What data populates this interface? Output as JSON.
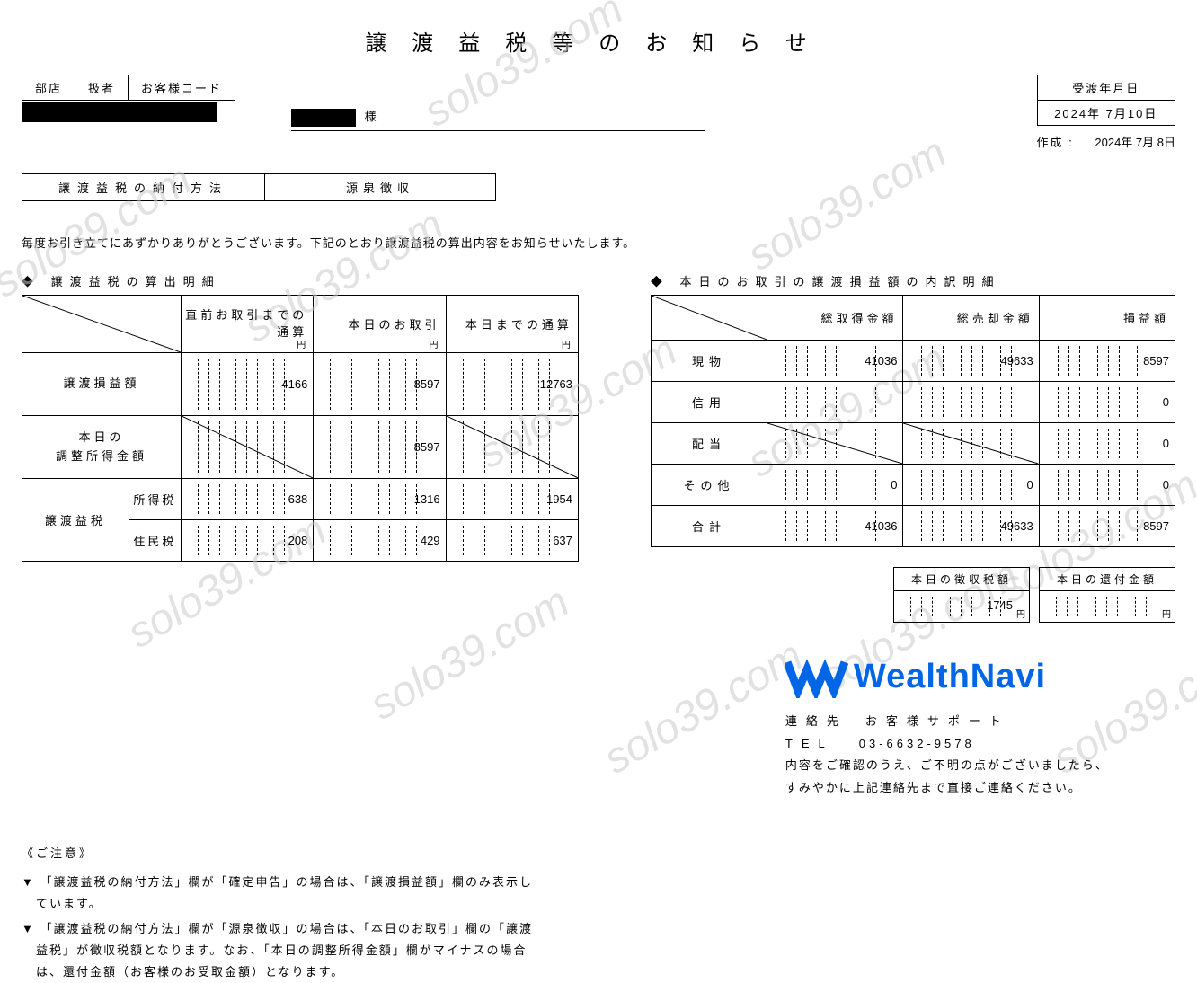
{
  "watermark_text": "solo39.com",
  "title": "譲渡益税等のお知らせ",
  "customer_header": {
    "c1": "部店",
    "c2": "扱者",
    "c3": "お客様コード"
  },
  "sama": "様",
  "dates": {
    "delivery_label": "受渡年月日",
    "delivery": "2024年 7月10日",
    "created_label": "作成",
    "created": "2024年 7月 8日"
  },
  "method": {
    "label": "譲渡益税の納付方法",
    "value": "源泉徴収"
  },
  "intro": "毎度お引き立てにあずかりありがとうございます。下記のとおり譲渡益税の算出内容をお知らせいたします。",
  "tax_calc": {
    "title": "譲渡益税の算出明細",
    "cols": [
      "直前お取引までの通算",
      "本日のお取引",
      "本日までの通算"
    ],
    "yen": "円",
    "rows": [
      {
        "label": "譲渡損益額",
        "vals": [
          "4166",
          "8597",
          "12763"
        ],
        "diag": [
          false,
          false,
          false
        ]
      },
      {
        "label": "本日の\n調整所得金額",
        "vals": [
          "",
          "8597",
          ""
        ],
        "diag": [
          true,
          false,
          true
        ]
      }
    ],
    "split_label": "譲渡益税",
    "split_rows": [
      {
        "sub": "所得税",
        "vals": [
          "638",
          "1316",
          "1954"
        ]
      },
      {
        "sub": "住民税",
        "vals": [
          "208",
          "429",
          "637"
        ]
      }
    ]
  },
  "breakdown": {
    "title": "本日のお取引の譲渡損益額の内訳明細",
    "cols": [
      "総取得金額",
      "総売却金額",
      "損益額"
    ],
    "rows": [
      {
        "label": "現物",
        "vals": [
          "41036",
          "49633",
          "8597"
        ]
      },
      {
        "label": "信用",
        "vals": [
          "",
          "",
          "0"
        ]
      },
      {
        "label": "配当",
        "vals": [
          "",
          "",
          "0"
        ],
        "diag_cols": [
          0,
          1
        ]
      },
      {
        "label": "その他",
        "vals": [
          "0",
          "0",
          "0"
        ]
      },
      {
        "label": "合計",
        "vals": [
          "41036",
          "49633",
          "8597"
        ]
      }
    ]
  },
  "summary": {
    "collected_label": "本日の徴収税額",
    "collected": "1745",
    "yen": "円",
    "refund_label": "本日の還付金額",
    "refund": ""
  },
  "notes": {
    "header": "《ご注意》",
    "n1": "▼ 「譲渡益税の納付方法」欄が「確定申告」の場合は、「譲渡損益額」欄のみ表示しています。",
    "n2": "▼ 「譲渡益税の納付方法」欄が「源泉徴収」の場合は、「本日のお取引」欄の「譲渡益税」が徴収税額となります。なお、「本日の調整所得金額」欄がマイナスの場合は、還付金額（お客様のお受取金額）となります。"
  },
  "brand": {
    "name": "WealthNavi",
    "contact_label": "連絡先",
    "contact_value": "お客様サポート",
    "tel_label": "TEL",
    "tel": "03-6632-9578",
    "line1": "内容をご確認のうえ、ご不明の点がございましたら、",
    "line2": "すみやかに上記連絡先まで直接ご連絡ください。"
  },
  "colors": {
    "brand": "#0066e6",
    "wm": "#cccccc"
  }
}
